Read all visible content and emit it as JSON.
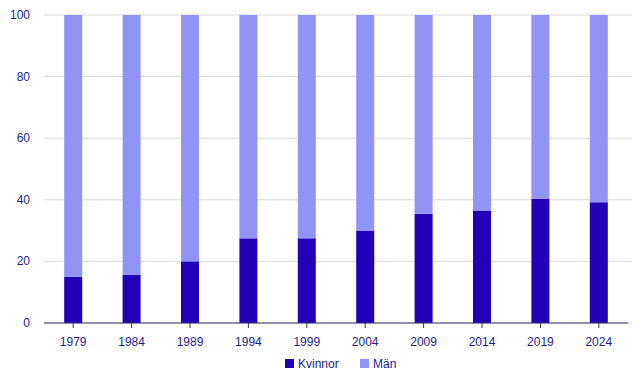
{
  "chart_data": {
    "type": "bar",
    "stacked": true,
    "categories": [
      "1979",
      "1984",
      "1989",
      "1994",
      "1999",
      "2004",
      "2009",
      "2014",
      "2019",
      "2024"
    ],
    "series": [
      {
        "name": "Kvinnor",
        "color": "#2200b8",
        "values": [
          15,
          15.7,
          20,
          27.5,
          27.5,
          30,
          35.5,
          36.5,
          40.3,
          39.2
        ]
      },
      {
        "name": "Män",
        "color": "#9193f5",
        "values": [
          85,
          84.3,
          80,
          72.5,
          72.5,
          70,
          64.5,
          63.5,
          59.7,
          60.8
        ]
      }
    ],
    "ylim": [
      0,
      100
    ],
    "yticks": [
      0,
      20,
      40,
      60,
      80,
      100
    ],
    "grid": true,
    "legend": "bottom"
  }
}
